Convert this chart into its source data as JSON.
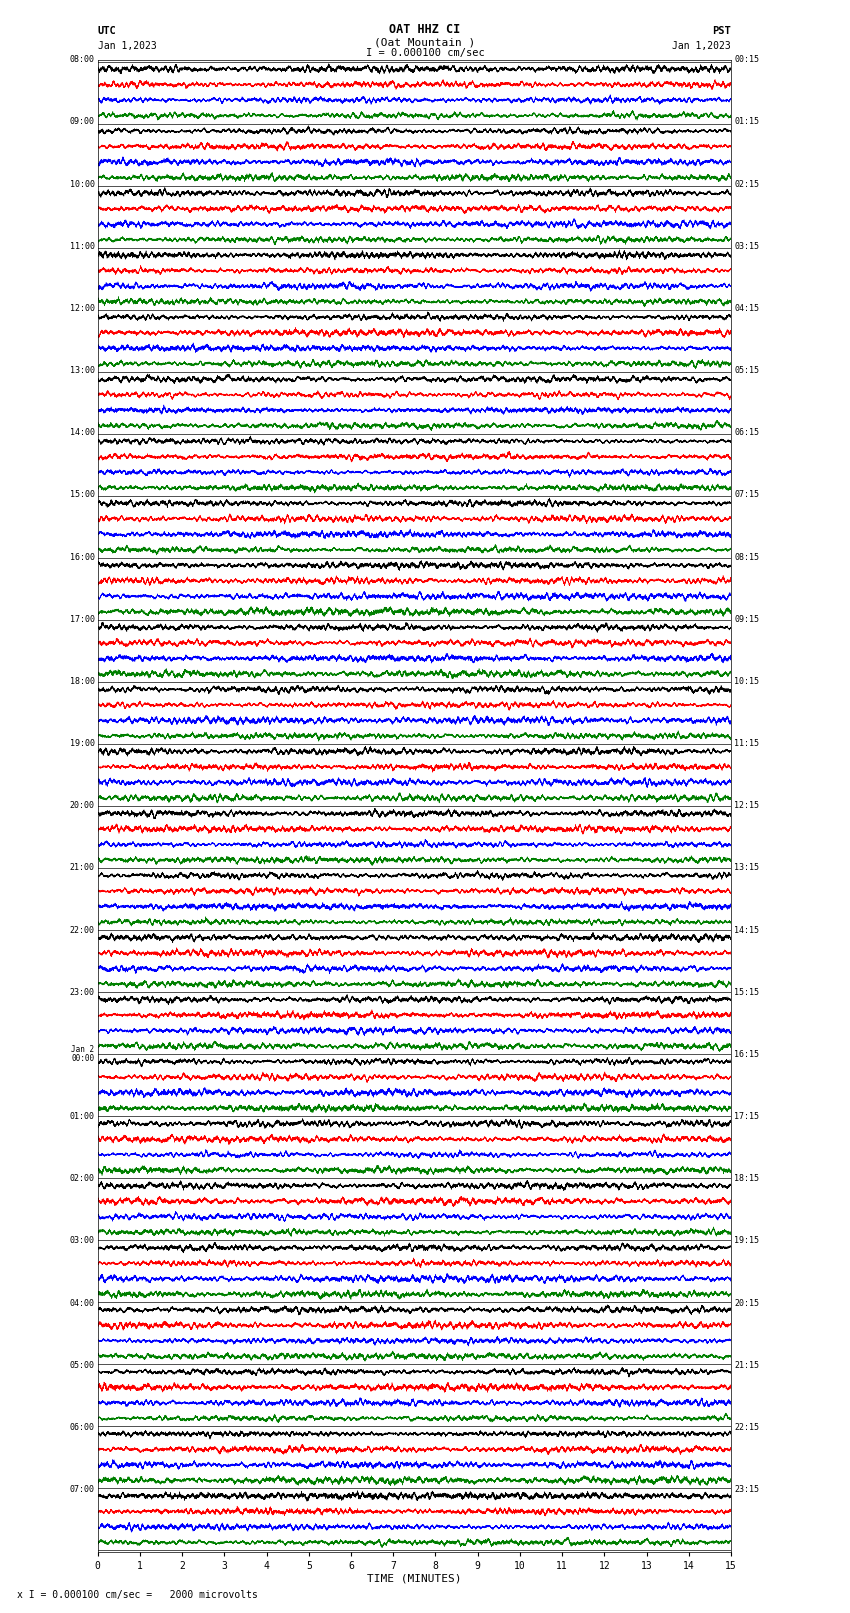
{
  "title_line1": "OAT HHZ CI",
  "title_line2": "(Oat Mountain )",
  "scale_text": "I = 0.000100 cm/sec",
  "utc_label": "UTC",
  "utc_date": "Jan 1,2023",
  "pst_label": "PST",
  "pst_date": "Jan 1,2023",
  "xlabel": "TIME (MINUTES)",
  "footnote": "x I = 0.000100 cm/sec =   2000 microvolts",
  "left_labels": [
    "08:00",
    "09:00",
    "10:00",
    "11:00",
    "12:00",
    "13:00",
    "14:00",
    "15:00",
    "16:00",
    "17:00",
    "18:00",
    "19:00",
    "20:00",
    "21:00",
    "22:00",
    "23:00",
    "Jan 2\n00:00",
    "01:00",
    "02:00",
    "03:00",
    "04:00",
    "05:00",
    "06:00",
    "07:00"
  ],
  "right_labels": [
    "00:15",
    "01:15",
    "02:15",
    "03:15",
    "04:15",
    "05:15",
    "06:15",
    "07:15",
    "08:15",
    "09:15",
    "10:15",
    "11:15",
    "12:15",
    "13:15",
    "14:15",
    "15:15",
    "16:15",
    "17:15",
    "18:15",
    "19:15",
    "20:15",
    "21:15",
    "22:15",
    "23:15"
  ],
  "num_hours": 24,
  "sub_traces": 4,
  "trace_colors": [
    "#000000",
    "#ff0000",
    "#0000ff",
    "#008000"
  ],
  "bg_color": "#ffffff",
  "xlim": [
    0,
    15
  ],
  "xticks": [
    0,
    1,
    2,
    3,
    4,
    5,
    6,
    7,
    8,
    9,
    10,
    11,
    12,
    13,
    14,
    15
  ],
  "samples_per_trace": 9000,
  "sub_amplitude": 0.38,
  "fig_width": 8.5,
  "fig_height": 16.13,
  "dpi": 100
}
